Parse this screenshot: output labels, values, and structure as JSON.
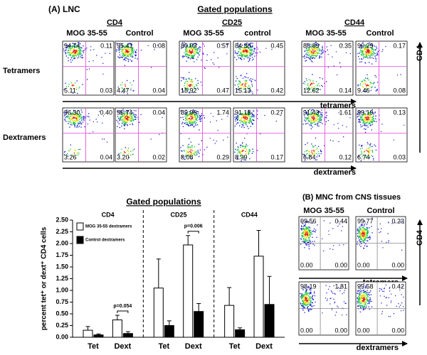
{
  "panel_a": {
    "label": "(A) LNC",
    "title": "Gated populations",
    "groups": [
      {
        "name": "CD4",
        "conditions": [
          "MOG 35-55",
          "Control"
        ]
      },
      {
        "name": "CD25",
        "conditions": [
          "MOG 35-55",
          "control"
        ]
      },
      {
        "name": "CD44",
        "conditions": [
          "MOG 35-55",
          "Control"
        ]
      }
    ],
    "rows": [
      {
        "label": "Tetramers",
        "axis_label": "tetramers",
        "plots": [
          [
            "94.74",
            "0.11",
            "5.11",
            "0.03"
          ],
          [
            "95.41",
            "0.08",
            "4.47",
            "0.04"
          ],
          [
            "80.03",
            "0.57",
            "18.92",
            "0.47"
          ],
          [
            "84.30",
            "0.45",
            "15.13",
            "0.42"
          ],
          [
            "86.89",
            "0.35",
            "12.62",
            "0.14"
          ],
          [
            "90.29",
            "0.17",
            "9.46",
            "0.08"
          ]
        ]
      },
      {
        "label": "Dextramers",
        "axis_label": "dextramers",
        "plots": [
          [
            "96.30",
            "0.40",
            "3.26",
            "0.04"
          ],
          [
            "96.74",
            "0.04",
            "3.20",
            "0.02"
          ],
          [
            "89.96",
            "1.74",
            "8.08",
            "0.29"
          ],
          [
            "91.18",
            "0.27",
            "8.39",
            "0.17"
          ],
          [
            "91.43",
            "1.61",
            "6.84",
            "0.12"
          ],
          [
            "93.19",
            "0.13",
            "6.74",
            "0.03"
          ]
        ]
      }
    ],
    "y_axis_label": "CD4"
  },
  "chart_data": {
    "type": "bar",
    "title": "Gated populations",
    "y_label": "percent tet⁺ or dext⁺ CD4 cells",
    "groups": [
      "CD4",
      "CD25",
      "CD44"
    ],
    "categories": [
      "Tet",
      "Dext",
      "Tet",
      "Dext",
      "Tet",
      "Dext"
    ],
    "series": [
      {
        "name": "MOG 35-55 dextramers",
        "color": "#ffffff",
        "values": [
          0.15,
          0.37,
          1.05,
          1.97,
          0.68,
          1.73
        ],
        "errors": [
          0.08,
          0.1,
          0.62,
          0.2,
          0.38,
          0.55
        ]
      },
      {
        "name": "Control dextramers",
        "color": "#000000",
        "values": [
          0.05,
          0.08,
          0.25,
          0.55,
          0.16,
          0.7
        ],
        "errors": [
          0.02,
          0.04,
          0.1,
          0.17,
          0.04,
          0.6
        ]
      }
    ],
    "annotations": [
      "p=0.054",
      "p=0.006"
    ],
    "ylim": [
      0,
      2.5
    ],
    "yticks": [
      {
        "value": 0,
        "label": "0.00"
      },
      {
        "value": 0.25,
        "label": "0.25"
      },
      {
        "value": 0.5,
        "label": "0.50"
      },
      {
        "value": 0.75,
        "label": "0.75"
      },
      {
        "value": 1,
        "label": "1.00"
      },
      {
        "value": 1.25,
        "label": "1.25"
      },
      {
        "value": 1.5,
        "label": "1.50"
      },
      {
        "value": 1.75,
        "label": "1.75"
      },
      {
        "value": 2,
        "label": "2.00"
      },
      {
        "value": 2.25,
        "label": "2.25"
      },
      {
        "value": 2.5,
        "label": "2.50"
      }
    ]
  },
  "panel_b": {
    "label": "(B) MNC from CNS tissues",
    "conditions": [
      "MOG 35-55",
      "Control"
    ],
    "rows": [
      {
        "axis_label": "tetramers",
        "plots": [
          [
            "99.56",
            "0.44",
            "0.00",
            "0.00"
          ],
          [
            "99.77",
            "0.23",
            "0.00",
            "0.00"
          ]
        ]
      },
      {
        "axis_label": "dextramers",
        "plots": [
          [
            "98.19",
            "1.81",
            "0.00",
            "0.00"
          ],
          [
            "99.58",
            "0.42",
            "0.00",
            "0.00"
          ]
        ]
      }
    ],
    "y_axis_label": "CD4"
  }
}
